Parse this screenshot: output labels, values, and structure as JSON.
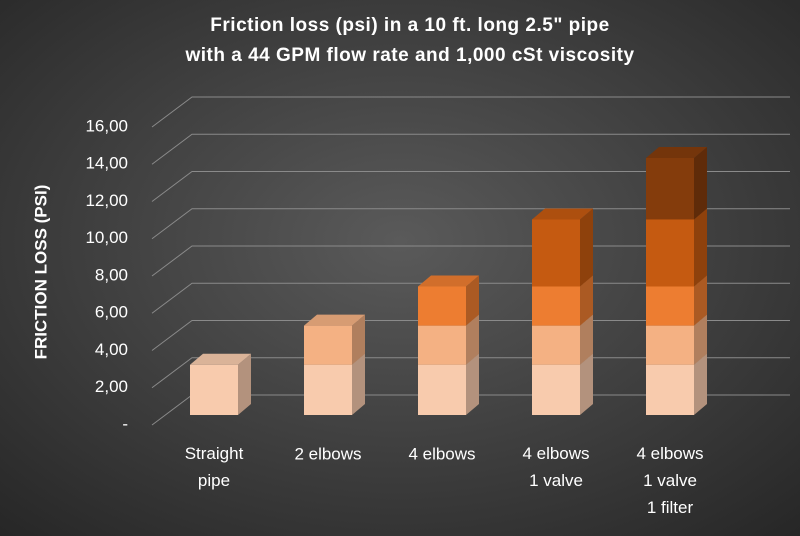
{
  "chart_data": {
    "type": "bar",
    "stacked": true,
    "title": [
      "Friction loss (psi) in a 10 ft. long 2.5\" pipe",
      "with a 44 GPM flow rate and 1,000 cSt  viscosity"
    ],
    "y_label": "FRICTION LOSS (PSI)",
    "categories": [
      "Straight\npipe",
      "2 elbows",
      "4 elbows",
      "4 elbows\n1 valve",
      "4 elbows\n1 valve\n1 filter"
    ],
    "series": [
      {
        "color": "#f8cbad",
        "values": [
          2.7,
          2.7,
          2.7,
          2.7,
          2.7
        ]
      },
      {
        "color": "#f4b183",
        "values": [
          null,
          2.1,
          2.1,
          2.1,
          2.1
        ]
      },
      {
        "color": "#ed7d31",
        "values": [
          null,
          null,
          2.1,
          2.1,
          2.1
        ]
      },
      {
        "color": "#c55a11",
        "values": [
          null,
          null,
          null,
          3.6,
          3.6
        ]
      },
      {
        "color": "#843c0c",
        "values": [
          null,
          null,
          null,
          null,
          3.3
        ]
      }
    ],
    "ylim": [
      0,
      16
    ],
    "yticks": [
      {
        "value": 0,
        "label": "-"
      },
      {
        "value": 2,
        "label": "2,00"
      },
      {
        "value": 4,
        "label": "4,00"
      },
      {
        "value": 6,
        "label": "6,00"
      },
      {
        "value": 8,
        "label": "8,00"
      },
      {
        "value": 10,
        "label": "10,00"
      },
      {
        "value": 12,
        "label": "12,00"
      },
      {
        "value": 14,
        "label": "14,00"
      },
      {
        "value": 16,
        "label": "16,00"
      }
    ],
    "grid": true
  }
}
